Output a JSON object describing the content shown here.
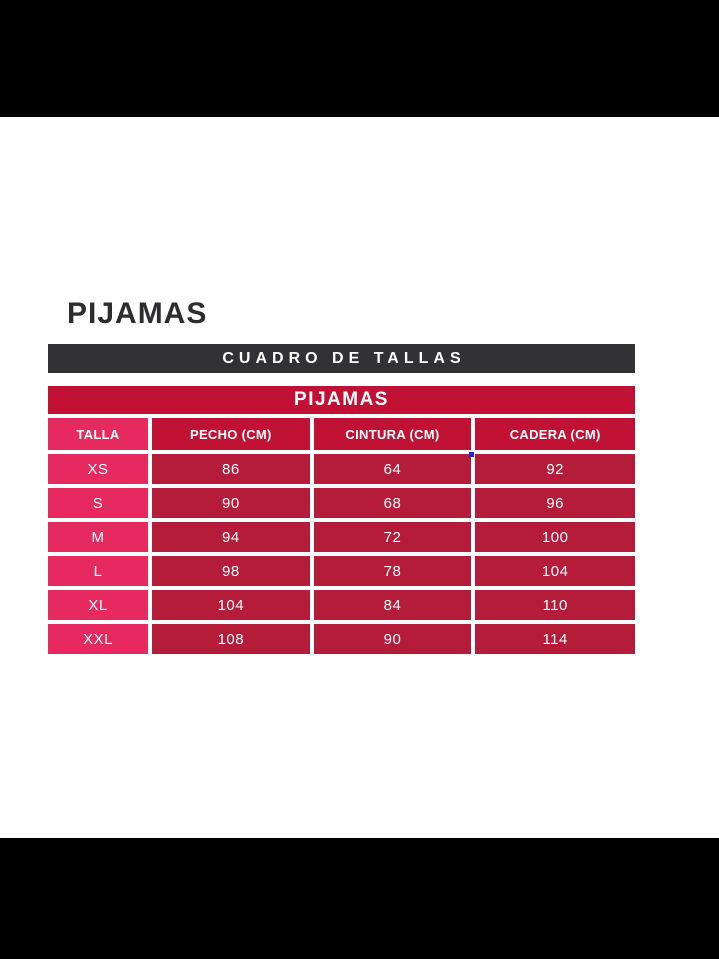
{
  "colors": {
    "letterbox": "#000000",
    "panel": "#ffffff",
    "title-text": "#2d2d2f",
    "dark-bar": "#323234",
    "red": "#c11134",
    "dark-red": "#b41c3a",
    "pink": "#e62a5f",
    "text-light": "#ffffff",
    "artifact-blue": "#2429d6"
  },
  "title": "PIJAMAS",
  "banner": {
    "label": "CUADRO DE TALLAS"
  },
  "size_table": {
    "caption": "PIJAMAS",
    "columns": [
      "TALLA",
      "PECHO (CM)",
      "CINTURA (CM)",
      "CADERA (CM)"
    ],
    "rows": [
      [
        "XS",
        "86",
        "64",
        "92"
      ],
      [
        "S",
        "90",
        "68",
        "96"
      ],
      [
        "M",
        "94",
        "72",
        "100"
      ],
      [
        "L",
        "98",
        "78",
        "104"
      ],
      [
        "XL",
        "104",
        "84",
        "110"
      ],
      [
        "XXL",
        "108",
        "90",
        "114"
      ]
    ]
  }
}
